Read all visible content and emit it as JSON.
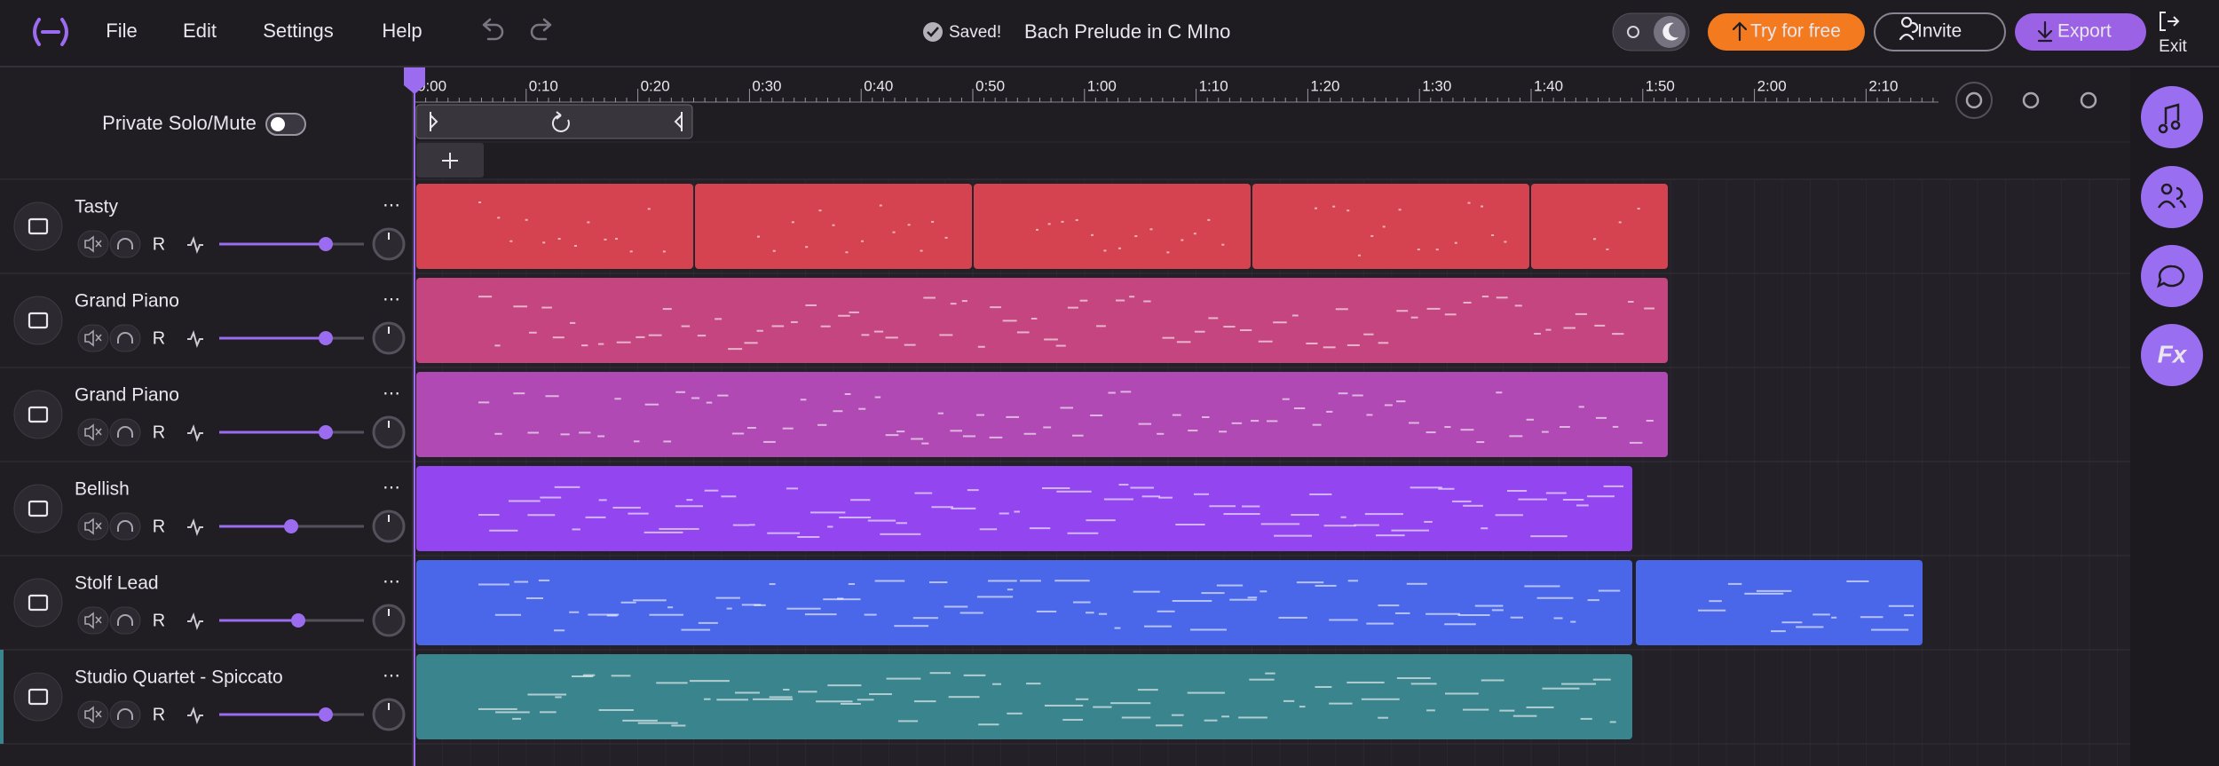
{
  "header": {
    "menu": [
      "File",
      "Edit",
      "Settings",
      "Help"
    ],
    "status": "Saved!",
    "project_title": "Bach Prelude in C MIno",
    "try_button": "Try for free",
    "invite_button": "Invite",
    "export_button": "Export",
    "exit_button": "Exit"
  },
  "mixer": {
    "private_solo_mute": "Private Solo/Mute",
    "record_button": "R"
  },
  "timeline": {
    "labels": [
      "0:00",
      "0:10",
      "0:20",
      "0:30",
      "0:40",
      "0:50",
      "1:00",
      "1:10",
      "1:20",
      "1:30",
      "1:40",
      "1:50",
      "2:00",
      "2:10"
    ]
  },
  "tracks": [
    {
      "name": "Tasty"
    },
    {
      "name": "Grand Piano"
    },
    {
      "name": "Grand Piano"
    },
    {
      "name": "Bellish"
    },
    {
      "name": "Stolf Lead"
    },
    {
      "name": "Studio Quartet - Spiccato"
    }
  ],
  "sidebar": {
    "fx_button": "Fx"
  }
}
